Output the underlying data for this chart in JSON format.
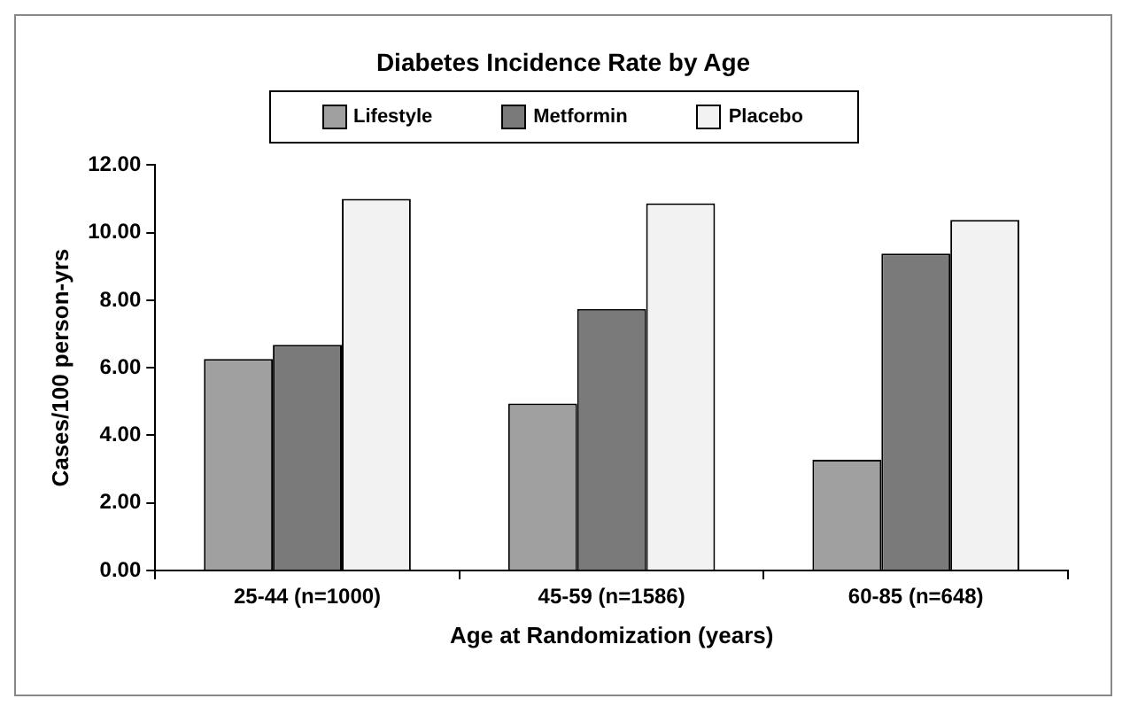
{
  "chart_data": {
    "type": "bar",
    "title": "Diabetes Incidence Rate by Age",
    "xlabel": "Age at Randomization (years)",
    "ylabel": "Cases/100 person-yrs",
    "categories": [
      "25-44 (n=1000)",
      "45-59 (n=1586)",
      "60-85 (n=648)"
    ],
    "series": [
      {
        "name": "Lifestyle",
        "color": "#a0a0a0",
        "values": [
          6.26,
          4.94,
          3.28
        ]
      },
      {
        "name": "Metformin",
        "color": "#7a7a7a",
        "values": [
          6.68,
          7.74,
          9.38
        ]
      },
      {
        "name": "Placebo",
        "color": "#f2f2f2",
        "values": [
          11.0,
          10.87,
          10.38
        ]
      }
    ],
    "ylim": [
      0,
      12
    ],
    "yticks": [
      {
        "value": 0,
        "label": "0.00"
      },
      {
        "value": 2,
        "label": "2.00"
      },
      {
        "value": 4,
        "label": "4.00"
      },
      {
        "value": 6,
        "label": "6.00"
      },
      {
        "value": 8,
        "label": "8.00"
      },
      {
        "value": 10,
        "label": "10.00"
      },
      {
        "value": 12,
        "label": "12.00"
      }
    ],
    "grid": false,
    "legend": "top"
  }
}
